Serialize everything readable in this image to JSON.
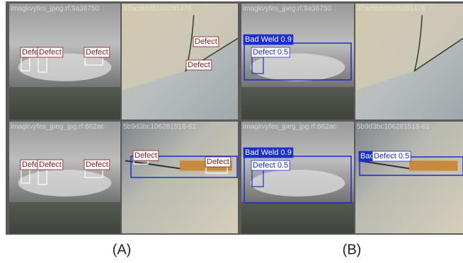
{
  "panels": [
    {
      "caption": "(A)",
      "tiles": [
        {
          "filename": "imagkvyfes_jpeg.rf.9a36750",
          "labels": [
            "Defe",
            "Defect",
            "Defect"
          ]
        },
        {
          "filename": "37ac8b5f8106281476",
          "labels": [
            "Defect",
            "Defect"
          ]
        },
        {
          "filename": "imagkvyfes_jpeg_jpg.rf.662ac",
          "labels": [
            "Defe",
            "Defect",
            "Defect"
          ]
        },
        {
          "filename": "5b9d3bc106281518-61",
          "labels": [
            "Defect",
            "Defect"
          ]
        }
      ]
    },
    {
      "caption": "(B)",
      "tiles": [
        {
          "filename": "imagkvyfes_jpeg.rf.9a36750",
          "labels": [
            "Bad Weld 0.9",
            "Defect 0.5"
          ]
        },
        {
          "filename": "37ac8b5f8106281476",
          "labels": []
        },
        {
          "filename": "imagkvyfes_jpeg_jpg.rf.662ac",
          "labels": [
            "Bad Weld 0.9",
            "Defect 0.5"
          ]
        },
        {
          "filename": "5b9d3bc106281518-61",
          "labels": [
            "Bad",
            "Defect 0.5"
          ]
        }
      ]
    }
  ]
}
